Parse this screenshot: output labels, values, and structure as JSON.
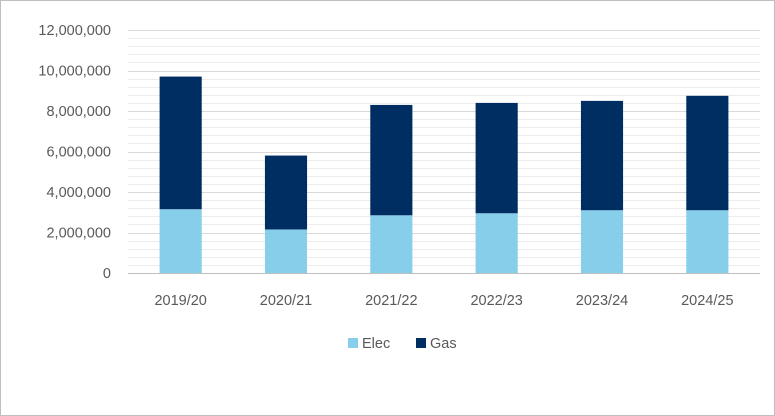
{
  "chart_data": {
    "type": "bar",
    "stacked": true,
    "categories": [
      "2019/20",
      "2020/21",
      "2021/22",
      "2022/23",
      "2023/24",
      "2024/25"
    ],
    "series": [
      {
        "name": "Elec",
        "values": [
          3150000,
          2150000,
          2850000,
          2950000,
          3100000,
          3100000
        ]
      },
      {
        "name": "Gas",
        "values": [
          6550000,
          3650000,
          5450000,
          5450000,
          5400000,
          5650000
        ]
      }
    ],
    "ylim": [
      0,
      12000000
    ],
    "yticks": [
      {
        "value": 0,
        "label": "0"
      },
      {
        "value": 2000000,
        "label": "2,000,000"
      },
      {
        "value": 4000000,
        "label": "4,000,000"
      },
      {
        "value": 6000000,
        "label": "6,000,000"
      },
      {
        "value": 8000000,
        "label": "8,000,000"
      },
      {
        "value": 10000000,
        "label": "10,000,000"
      },
      {
        "value": 12000000,
        "label": "12,000,000"
      }
    ],
    "minor_grid_step": 400000,
    "grid": true,
    "legend": "bottom",
    "colors": {
      "Elec": "#87CEEB",
      "Gas": "#002D62"
    }
  }
}
